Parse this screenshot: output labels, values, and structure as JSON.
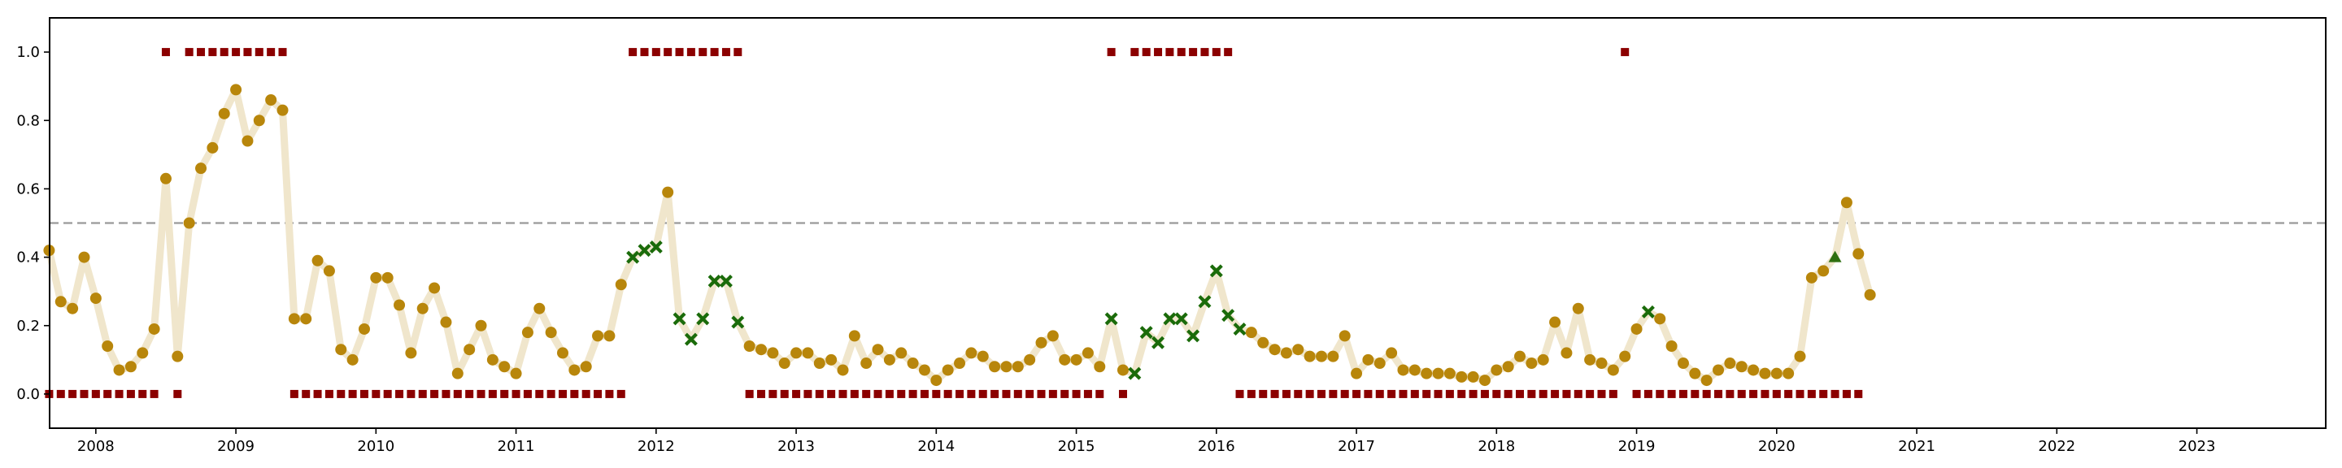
{
  "chart_data": {
    "type": "scatter",
    "title": "",
    "xlabel": "",
    "ylabel": "",
    "xlim": [
      2007.67,
      2023.92
    ],
    "ylim": [
      -0.1,
      1.1
    ],
    "threshold": 0.5,
    "x_ticks": [
      "2008",
      "2009",
      "2010",
      "2011",
      "2012",
      "2013",
      "2014",
      "2015",
      "2016",
      "2017",
      "2018",
      "2019",
      "2020",
      "2021",
      "2022",
      "2023"
    ],
    "y_ticks": [
      "0.0",
      "0.2",
      "0.4",
      "0.6",
      "0.8",
      "1.0"
    ],
    "grid": false,
    "legend": "none",
    "colors": {
      "line": "#f0e6cc",
      "dot": "#b8860b",
      "cross": "#1a6b0a",
      "triangle": "#2e6f10",
      "square": "#8b0000",
      "threshold": "#999999"
    },
    "series": [
      {
        "marker": "line-and-points",
        "start": "2007-09",
        "frequency": "monthly",
        "values": [
          0.42,
          0.27,
          0.25,
          0.4,
          0.28,
          0.14,
          0.07,
          0.08,
          0.12,
          0.19,
          0.63,
          0.11,
          0.5,
          0.66,
          0.72,
          0.82,
          0.89,
          0.74,
          0.8,
          0.86,
          0.83,
          0.22,
          0.22,
          0.39,
          0.36,
          0.13,
          0.1,
          0.19,
          0.34,
          0.34,
          0.26,
          0.12,
          0.25,
          0.31,
          0.21,
          0.06,
          0.13,
          0.2,
          0.1,
          0.08,
          0.06,
          0.18,
          0.25,
          0.18,
          0.12,
          0.07,
          0.08,
          0.17,
          0.17,
          0.32,
          0.4,
          0.42,
          0.43,
          0.59,
          0.22,
          0.16,
          0.22,
          0.33,
          0.33,
          0.21,
          0.14,
          0.13,
          0.12,
          0.09,
          0.12,
          0.12,
          0.09,
          0.1,
          0.07,
          0.17,
          0.09,
          0.13,
          0.1,
          0.12,
          0.09,
          0.07,
          0.04,
          0.07,
          0.09,
          0.12,
          0.11,
          0.08,
          0.08,
          0.08,
          0.1,
          0.15,
          0.17,
          0.1,
          0.1,
          0.12,
          0.08,
          0.22,
          0.07,
          0.06,
          0.18,
          0.15,
          0.22,
          0.22,
          0.17,
          0.27,
          0.36,
          0.23,
          0.19,
          0.18,
          0.15,
          0.13,
          0.12,
          0.13,
          0.11,
          0.11,
          0.11,
          0.17,
          0.06,
          0.1,
          0.09,
          0.12,
          0.07,
          0.07,
          0.06,
          0.06,
          0.06,
          0.05,
          0.05,
          0.04,
          0.07,
          0.08,
          0.11,
          0.09,
          0.1,
          0.21,
          0.12,
          0.25,
          0.1,
          0.09,
          0.07,
          0.11,
          0.19,
          0.24,
          0.22,
          0.14,
          0.09,
          0.06,
          0.04,
          0.07,
          0.09,
          0.08,
          0.07,
          0.06,
          0.06,
          0.06,
          0.11,
          0.34,
          0.36,
          0.4,
          0.56,
          0.41,
          0.29
        ],
        "cross_indices": [
          50,
          51,
          52,
          54,
          55,
          56,
          57,
          58,
          59,
          91,
          93,
          94,
          95,
          96,
          97,
          98,
          99,
          100,
          101,
          102,
          137
        ],
        "triangle_indices": [
          153
        ]
      },
      {
        "marker": "square",
        "start": "2007-09",
        "frequency": "monthly",
        "values": [
          0,
          0,
          0,
          0,
          0,
          0,
          0,
          0,
          0,
          0,
          1,
          0,
          1,
          1,
          1,
          1,
          1,
          1,
          1,
          1,
          1,
          0,
          0,
          0,
          0,
          0,
          0,
          0,
          0,
          0,
          0,
          0,
          0,
          0,
          0,
          0,
          0,
          0,
          0,
          0,
          0,
          0,
          0,
          0,
          0,
          0,
          0,
          0,
          0,
          0,
          1,
          1,
          1,
          1,
          1,
          1,
          1,
          1,
          1,
          1,
          0,
          0,
          0,
          0,
          0,
          0,
          0,
          0,
          0,
          0,
          0,
          0,
          0,
          0,
          0,
          0,
          0,
          0,
          0,
          0,
          0,
          0,
          0,
          0,
          0,
          0,
          0,
          0,
          0,
          0,
          0,
          1,
          0,
          1,
          1,
          1,
          1,
          1,
          1,
          1,
          1,
          1,
          0,
          0,
          0,
          0,
          0,
          0,
          0,
          0,
          0,
          0,
          0,
          0,
          0,
          0,
          0,
          0,
          0,
          0,
          0,
          0,
          0,
          0,
          0,
          0,
          0,
          0,
          0,
          0,
          0,
          0,
          0,
          0,
          0,
          1,
          0,
          0,
          0,
          0,
          0,
          0,
          0,
          0,
          0,
          0,
          0,
          0,
          0,
          0,
          0,
          0,
          0,
          0,
          0,
          0
        ]
      }
    ]
  }
}
